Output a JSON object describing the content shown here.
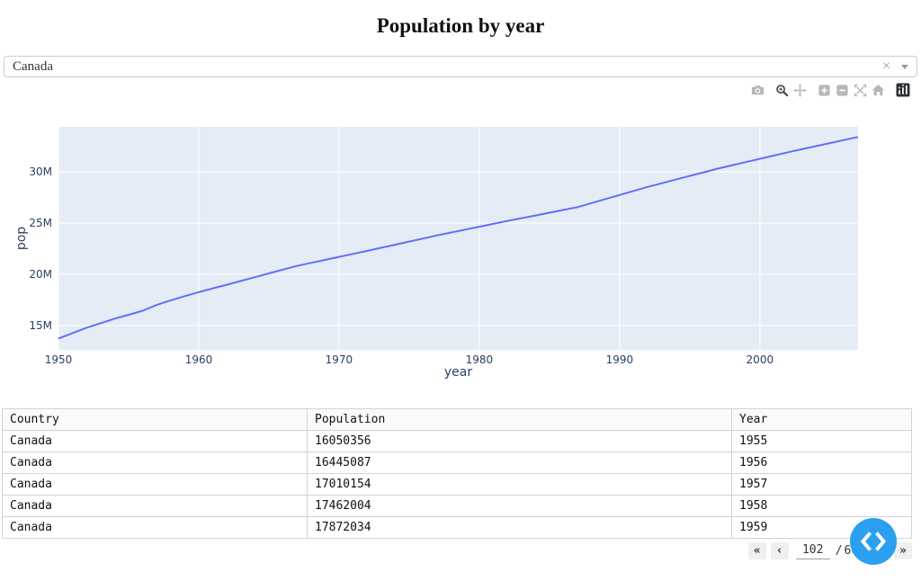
{
  "page": {
    "title": "Population by year"
  },
  "dropdown": {
    "value": "Canada",
    "clear_icon": "×"
  },
  "modebar": {
    "buttons": [
      "camera",
      "zoom",
      "pan",
      "zoom-in",
      "zoom-out",
      "autoscale",
      "reset-axes",
      "plotly-logo"
    ],
    "active_button": "zoom"
  },
  "chart_data": {
    "type": "line",
    "title": "",
    "xlabel": "year",
    "ylabel": "pop",
    "x": [
      1950,
      1951,
      1952,
      1953,
      1954,
      1955,
      1956,
      1957,
      1958,
      1959,
      1960,
      1961,
      1962,
      1963,
      1964,
      1965,
      1966,
      1967,
      1968,
      1969,
      1970,
      1971,
      1972,
      1973,
      1974,
      1975,
      1976,
      1977,
      1978,
      1979,
      1980,
      1981,
      1982,
      1983,
      1984,
      1985,
      1986,
      1987,
      1988,
      1989,
      1990,
      1991,
      1992,
      1993,
      1994,
      1995,
      1996,
      1997,
      1998,
      1999,
      2000,
      2001,
      2002,
      2003,
      2004,
      2005,
      2006,
      2007
    ],
    "series": [
      {
        "name": "pop",
        "values": [
          13737000,
          14261000,
          14785584,
          15230498,
          15675412,
          16050356,
          16445087,
          17010154,
          17462004,
          17872034,
          18267000,
          18634000,
          18985849,
          19352633,
          19719417,
          20086200,
          20452984,
          20819767,
          21112714,
          21405661,
          21698607,
          21991554,
          22284500,
          22586880,
          22889260,
          23191640,
          23494020,
          23796400,
          24077500,
          24358600,
          24639700,
          24920800,
          25201900,
          25471460,
          25741020,
          26010580,
          26280140,
          26549700,
          26944460,
          27339221,
          27733981,
          28128742,
          28523502,
          28879970,
          29236438,
          29592907,
          29949375,
          30305843,
          30625128,
          30944413,
          31263698,
          31582983,
          31902268,
          32199843,
          32497417,
          32794992,
          33092566,
          33390141
        ]
      }
    ],
    "xlim": [
      1950,
      2007
    ],
    "ylim": [
      12632000,
      34386000
    ],
    "xticks": [
      1950,
      1960,
      1970,
      1980,
      1990,
      2000
    ],
    "yticks": [
      {
        "value": 15000000,
        "label": "15M"
      },
      {
        "value": 20000000,
        "label": "20M"
      },
      {
        "value": 25000000,
        "label": "25M"
      },
      {
        "value": 30000000,
        "label": "30M"
      }
    ],
    "grid": true,
    "legend": "none",
    "line_color": "#636EFA",
    "plot_bg": "#E5ECF6",
    "tick_color": "#2a3f5f"
  },
  "table": {
    "columns": [
      "Country",
      "Population",
      "Year"
    ],
    "rows": [
      [
        "Canada",
        "16050356",
        "1955"
      ],
      [
        "Canada",
        "16445087",
        "1956"
      ],
      [
        "Canada",
        "17010154",
        "1957"
      ],
      [
        "Canada",
        "17462004",
        "1958"
      ],
      [
        "Canada",
        "17872034",
        "1959"
      ]
    ]
  },
  "pagination": {
    "first_label": "«",
    "prev_label": "‹",
    "current_page": "102",
    "divider": "/",
    "total_pages": "663",
    "next_label": "›",
    "last_label": "»"
  },
  "fab": {
    "left_icon": "chevron-left",
    "right_icon": "chevron-right",
    "color": "#2b9ff0"
  }
}
